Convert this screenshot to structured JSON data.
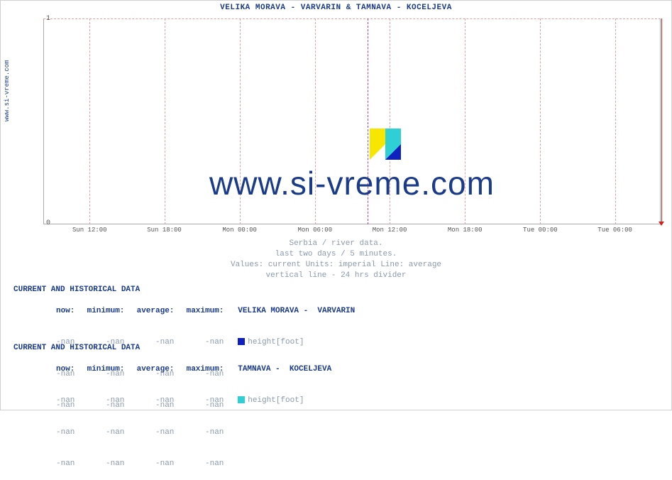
{
  "site_label": "www.si-vreme.com",
  "chart": {
    "type": "line",
    "title": "VELIKA MORAVA -  VARVARIN &  TAMNAVA -  KOCELJEVA",
    "watermark_text": "www.si-vreme.com",
    "background_color": "#ffffff",
    "grid_color_dashed": "#e6a0a0",
    "divider_color": "#c04090",
    "end_marker_color": "#d02020",
    "axis_color": "#aaaaaa",
    "title_color": "#1a3a8a",
    "tick_color": "#555555",
    "caption_color": "#8a9aad",
    "title_fontsize": 11,
    "tick_fontsize": 9,
    "ylim": [
      0,
      1
    ],
    "yticks": [
      0,
      1
    ],
    "xticks": [
      "Sun 12:00",
      "Sun 18:00",
      "Mon 00:00",
      "Mon 06:00",
      "Mon 12:00",
      "Mon 18:00",
      "Tue 00:00",
      "Tue 06:00"
    ],
    "xtick_positions_pct": [
      7.5,
      19.6,
      31.8,
      44.0,
      56.1,
      68.3,
      80.5,
      92.6
    ],
    "grid_v_positions_pct": [
      7.5,
      19.6,
      31.8,
      44.0,
      56.1,
      68.3,
      80.5,
      92.6
    ],
    "grid_h_positions_pct": [
      0
    ],
    "divider_position_pct": 52.5,
    "series": [
      {
        "name": "VELIKA MORAVA - VARVARIN",
        "color": "#1020c0",
        "data": []
      },
      {
        "name": "TAMNAVA - KOCELJEVA",
        "color": "#2ed0d6",
        "data": []
      }
    ],
    "caption_lines": [
      "Serbia / river data.",
      "last two days / 5 minutes.",
      "Values: current  Units: imperial  Line: average",
      "vertical line - 24 hrs  divider"
    ],
    "logo_colors": {
      "yellow": "#f7e600",
      "cyan": "#2ed0d6",
      "blue": "#1020c0",
      "white": "#ffffff"
    }
  },
  "tables": [
    {
      "header": "CURRENT AND HISTORICAL DATA",
      "columns": [
        "now:",
        "minimum:",
        "average:",
        "maximum:"
      ],
      "station": "VELIKA MORAVA -  VARVARIN",
      "legend_color": "#1020c0",
      "legend_label": "height[foot]",
      "rows": [
        [
          "-nan",
          "-nan",
          "-nan",
          "-nan"
        ],
        [
          "-nan",
          "-nan",
          "-nan",
          "-nan"
        ],
        [
          "-nan",
          "-nan",
          "-nan",
          "-nan"
        ]
      ]
    },
    {
      "header": "CURRENT AND HISTORICAL DATA",
      "columns": [
        "now:",
        "minimum:",
        "average:",
        "maximum:"
      ],
      "station": "TAMNAVA -  KOCELJEVA",
      "legend_color": "#2ed0d6",
      "legend_label": "height[foot]",
      "rows": [
        [
          "-nan",
          "-nan",
          "-nan",
          "-nan"
        ],
        [
          "-nan",
          "-nan",
          "-nan",
          "-nan"
        ],
        [
          "-nan",
          "-nan",
          "-nan",
          "-nan"
        ]
      ]
    }
  ]
}
